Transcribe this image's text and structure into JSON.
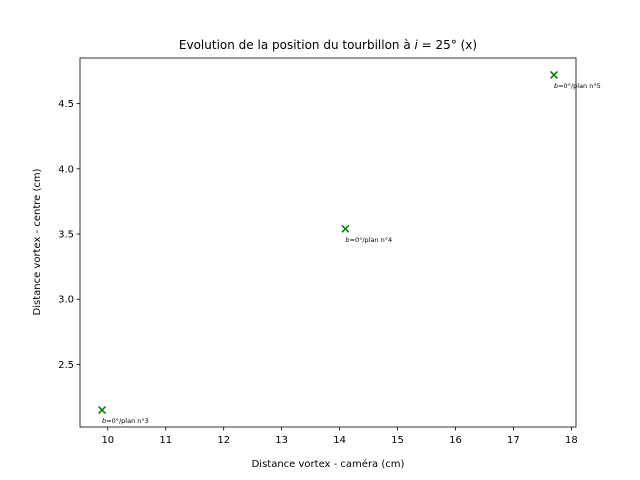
{
  "chart_data": {
    "type": "scatter",
    "title_prefix": "Evolution de la position du tourbillon à ",
    "title_var": "i",
    "title_suffix": " = 25° (x)",
    "xlabel": "Distance vortex - caméra (cm)",
    "ylabel": "Distance vortex - centre (cm)",
    "xlim": [
      9.52,
      18.08
    ],
    "ylim": [
      2.02,
      4.85
    ],
    "xticks": [
      10,
      11,
      12,
      13,
      14,
      15,
      16,
      17,
      18
    ],
    "yticks": [
      2.5,
      3.0,
      3.5,
      4.0,
      4.5
    ],
    "ytick_labels": [
      "2.5",
      "3.0",
      "3.5",
      "4.0",
      "4.5"
    ],
    "marker": "x",
    "color": "#008000",
    "grid": false,
    "points": [
      {
        "x": 9.9,
        "y": 2.15,
        "label_var": "b",
        "label_rest": "=0°/plan n°3"
      },
      {
        "x": 14.1,
        "y": 3.54,
        "label_var": "b",
        "label_rest": "=0°/plan n°4"
      },
      {
        "x": 17.7,
        "y": 4.72,
        "label_var": "b",
        "label_rest": "=0°/plan n°5"
      }
    ]
  }
}
